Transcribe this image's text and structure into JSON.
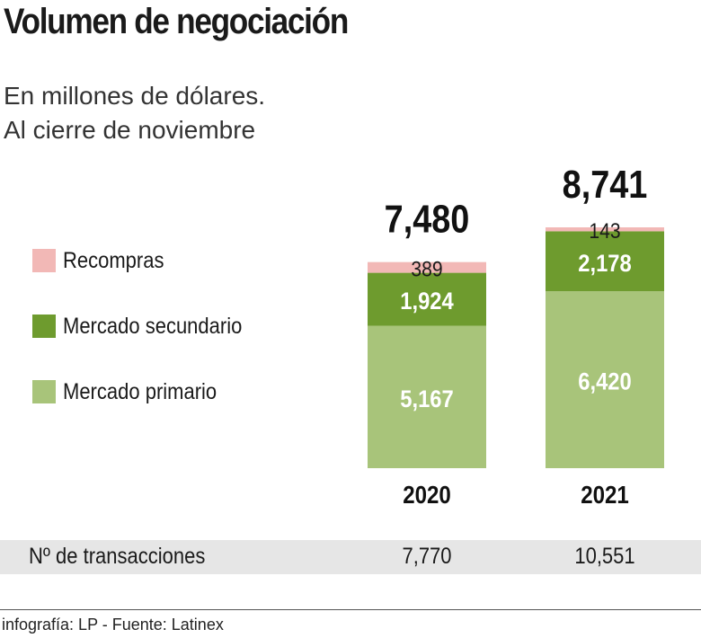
{
  "title": "Volumen de negociación",
  "subtitle_line1": "En millones de dólares.",
  "subtitle_line2": "Al cierre de noviembre",
  "colors": {
    "recompras": "#f2b8b6",
    "secundario": "#6e9b2e",
    "primario": "#a8c47a"
  },
  "legend": [
    {
      "label": "Recompras",
      "color": "#f2b8b6"
    },
    {
      "label": "Mercado secundario",
      "color": "#6e9b2e"
    },
    {
      "label": "Mercado primario",
      "color": "#a8c47a"
    }
  ],
  "chart_data": {
    "type": "bar",
    "stacked": true,
    "categories": [
      "2020",
      "2021"
    ],
    "totals": [
      "7,480",
      "8,741"
    ],
    "series": [
      {
        "name": "Mercado primario",
        "values": [
          5167,
          6420
        ],
        "labels": [
          "5,167",
          "6,420"
        ],
        "color": "#a8c47a"
      },
      {
        "name": "Mercado secundario",
        "values": [
          1924,
          2178
        ],
        "labels": [
          "1,924",
          "2,178"
        ],
        "color": "#6e9b2e"
      },
      {
        "name": "Recompras",
        "values": [
          389,
          143
        ],
        "labels": [
          "389",
          "143"
        ],
        "color": "#f2b8b6"
      }
    ],
    "legend_position": "left",
    "grid": false
  },
  "transactions": {
    "label": "Nº de transacciones",
    "values": [
      "7,770",
      "10,551"
    ]
  },
  "footer": "infografía: LP - Fuente: Latinex"
}
